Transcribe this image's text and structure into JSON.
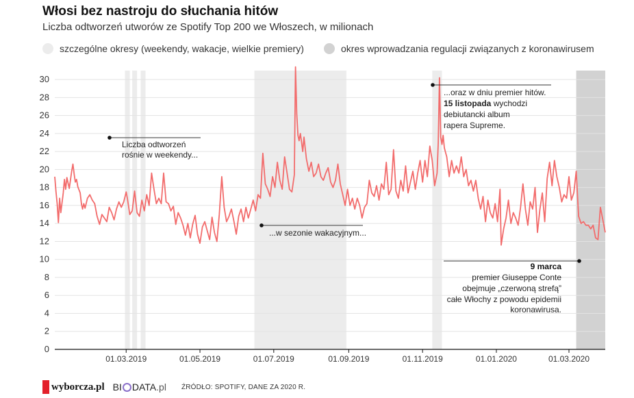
{
  "header": {
    "title": "Włosi bez nastroju do słuchania hitów",
    "subtitle": "Liczba  odtworzeń  utworów ze Spotify Top 200 we Włoszech, w milionach"
  },
  "legend": {
    "special_label": "szczególne okresy (weekendy, wakacje, wielkie premiery)",
    "special_color": "#ececec",
    "covid_label": "okres wprowadzania regulacji związanych z koronawirusem",
    "covid_color": "#d2d2d2"
  },
  "annotations": {
    "weekend_line1": "Liczba odtworzeń",
    "weekend_line2": "rośnie w weekendy...",
    "summer": "...w sezonie wakacyjnym...",
    "premiere_line1": "...oraz w dniu premier hitów.",
    "premiere_bold": "15 listopada",
    "premiere_line2_rest": " wychodzi",
    "premiere_line3": "debiutancki album",
    "premiere_line4": "rapera Supreme.",
    "covid_bold": "9 marca",
    "covid_line2": "premier Giuseppe Conte",
    "covid_line3": "obejmuje „czerwoną strefą”",
    "covid_line4": "całe Włochy z powodu epidemii",
    "covid_line5": "koronawirusa."
  },
  "footer": {
    "brand1": "wyborcza.pl",
    "brand2_a": "BI",
    "brand2_b": "DATA",
    "brand2_c": ".pl",
    "source": "ŹRÓDŁO: SPOTIFY, DANE ZA 2020 R."
  },
  "chart_data": {
    "type": "line",
    "title": "Włosi bez nastroju do słuchania hitów",
    "subtitle": "Liczba  odtworzeń  utworów ze Spotify Top 200 we Włoszech, w milionach",
    "x_start": "2019-01-01",
    "x_end": "2020-03-31",
    "xticks": [
      "2019-03-01",
      "2019-05-01",
      "2019-07-01",
      "2019-09-01",
      "2019-11-01",
      "2020-01-01",
      "2020-03-01"
    ],
    "xtick_labels": [
      "01.03.2019",
      "01.05.2019",
      "01.07.2019",
      "01.09.2019",
      "01.11.2019",
      "01.01.2020",
      "01.03.2020"
    ],
    "ylim": [
      0,
      31
    ],
    "yticks": [
      0,
      2,
      4,
      6,
      8,
      10,
      12,
      14,
      16,
      18,
      20,
      22,
      24,
      26,
      28,
      30
    ],
    "grid": true,
    "line_color": "#f26b6b",
    "shaded_regions": [
      {
        "start": "2019-02-28",
        "end": "2019-03-04",
        "kind": "special"
      },
      {
        "start": "2019-03-06",
        "end": "2019-03-10",
        "kind": "special"
      },
      {
        "start": "2019-03-13",
        "end": "2019-03-17",
        "kind": "special"
      },
      {
        "start": "2019-06-15",
        "end": "2019-08-30",
        "kind": "special"
      },
      {
        "start": "2019-11-09",
        "end": "2019-11-17",
        "kind": "special"
      },
      {
        "start": "2020-03-07",
        "end": "2020-03-31",
        "kind": "covid"
      }
    ],
    "series": [
      {
        "values": [
          [
            "2019-01-01",
            19.2
          ],
          [
            "2019-01-02",
            17.5
          ],
          [
            "2019-01-03",
            16.2
          ],
          [
            "2019-01-04",
            14.1
          ],
          [
            "2019-01-05",
            16.8
          ],
          [
            "2019-01-06",
            15.2
          ],
          [
            "2019-01-08",
            17.4
          ],
          [
            "2019-01-09",
            18.9
          ],
          [
            "2019-01-10",
            17.8
          ],
          [
            "2019-01-11",
            19.1
          ],
          [
            "2019-01-12",
            18.5
          ],
          [
            "2019-01-13",
            17.9
          ],
          [
            "2019-01-15",
            19.8
          ],
          [
            "2019-01-16",
            20.6
          ],
          [
            "2019-01-17",
            19.5
          ],
          [
            "2019-01-18",
            18.6
          ],
          [
            "2019-01-19",
            18.9
          ],
          [
            "2019-01-20",
            18.1
          ],
          [
            "2019-01-22",
            17.4
          ],
          [
            "2019-01-23",
            16.2
          ],
          [
            "2019-01-24",
            15.6
          ],
          [
            "2019-01-25",
            16.2
          ],
          [
            "2019-01-26",
            15.7
          ],
          [
            "2019-01-28",
            16.8
          ],
          [
            "2019-01-30",
            17.2
          ],
          [
            "2019-02-01",
            16.6
          ],
          [
            "2019-02-03",
            16.2
          ],
          [
            "2019-02-05",
            14.8
          ],
          [
            "2019-02-07",
            13.9
          ],
          [
            "2019-02-09",
            15.0
          ],
          [
            "2019-02-11",
            14.6
          ],
          [
            "2019-02-13",
            14.2
          ],
          [
            "2019-02-15",
            15.8
          ],
          [
            "2019-02-17",
            15.2
          ],
          [
            "2019-02-19",
            14.4
          ],
          [
            "2019-02-21",
            15.6
          ],
          [
            "2019-02-23",
            16.4
          ],
          [
            "2019-02-25",
            15.8
          ],
          [
            "2019-02-27",
            16.4
          ],
          [
            "2019-03-01",
            17.5
          ],
          [
            "2019-03-02",
            16.8
          ],
          [
            "2019-03-04",
            15.0
          ],
          [
            "2019-03-06",
            15.4
          ],
          [
            "2019-03-08",
            17.6
          ],
          [
            "2019-03-10",
            15.2
          ],
          [
            "2019-03-12",
            14.8
          ],
          [
            "2019-03-14",
            16.6
          ],
          [
            "2019-03-16",
            15.4
          ],
          [
            "2019-03-18",
            17.2
          ],
          [
            "2019-03-20",
            16.0
          ],
          [
            "2019-03-22",
            19.6
          ],
          [
            "2019-03-24",
            17.8
          ],
          [
            "2019-03-26",
            16.2
          ],
          [
            "2019-03-28",
            16.8
          ],
          [
            "2019-03-30",
            16.2
          ],
          [
            "2019-04-01",
            19.6
          ],
          [
            "2019-04-03",
            16.4
          ],
          [
            "2019-04-05",
            16.2
          ],
          [
            "2019-04-07",
            15.4
          ],
          [
            "2019-04-09",
            15.9
          ],
          [
            "2019-04-11",
            13.9
          ],
          [
            "2019-04-13",
            15.2
          ],
          [
            "2019-04-15",
            14.6
          ],
          [
            "2019-04-17",
            13.8
          ],
          [
            "2019-04-19",
            12.7
          ],
          [
            "2019-04-21",
            14.0
          ],
          [
            "2019-04-23",
            12.4
          ],
          [
            "2019-04-25",
            13.9
          ],
          [
            "2019-04-27",
            14.9
          ],
          [
            "2019-04-29",
            12.8
          ],
          [
            "2019-05-01",
            11.8
          ],
          [
            "2019-05-03",
            13.6
          ],
          [
            "2019-05-05",
            14.2
          ],
          [
            "2019-05-07",
            13.2
          ],
          [
            "2019-05-09",
            12.2
          ],
          [
            "2019-05-11",
            14.7
          ],
          [
            "2019-05-13",
            13.0
          ],
          [
            "2019-05-15",
            12.0
          ],
          [
            "2019-05-17",
            15.0
          ],
          [
            "2019-05-19",
            19.2
          ],
          [
            "2019-05-21",
            15.8
          ],
          [
            "2019-05-23",
            14.2
          ],
          [
            "2019-05-25",
            14.8
          ],
          [
            "2019-05-27",
            15.6
          ],
          [
            "2019-05-29",
            14.3
          ],
          [
            "2019-05-31",
            12.8
          ],
          [
            "2019-06-02",
            14.8
          ],
          [
            "2019-06-04",
            15.6
          ],
          [
            "2019-06-06",
            14.2
          ],
          [
            "2019-06-08",
            15.8
          ],
          [
            "2019-06-10",
            14.6
          ],
          [
            "2019-06-12",
            15.6
          ],
          [
            "2019-06-14",
            16.6
          ],
          [
            "2019-06-16",
            15.4
          ],
          [
            "2019-06-18",
            17.2
          ],
          [
            "2019-06-20",
            16.8
          ],
          [
            "2019-06-22",
            21.8
          ],
          [
            "2019-06-24",
            18.4
          ],
          [
            "2019-06-26",
            17.8
          ],
          [
            "2019-06-28",
            17.0
          ],
          [
            "2019-06-30",
            19.2
          ],
          [
            "2019-07-02",
            18.0
          ],
          [
            "2019-07-04",
            20.8
          ],
          [
            "2019-07-06",
            18.8
          ],
          [
            "2019-07-08",
            17.8
          ],
          [
            "2019-07-10",
            21.4
          ],
          [
            "2019-07-12",
            19.6
          ],
          [
            "2019-07-14",
            17.8
          ],
          [
            "2019-07-16",
            17.5
          ],
          [
            "2019-07-18",
            19.4
          ],
          [
            "2019-07-19",
            31.4
          ],
          [
            "2019-07-20",
            26.2
          ],
          [
            "2019-07-21",
            23.8
          ],
          [
            "2019-07-22",
            23.2
          ],
          [
            "2019-07-23",
            24.0
          ],
          [
            "2019-07-24",
            23.0
          ],
          [
            "2019-07-25",
            22.0
          ],
          [
            "2019-07-26",
            23.6
          ],
          [
            "2019-07-28",
            21.2
          ],
          [
            "2019-07-30",
            19.8
          ],
          [
            "2019-08-01",
            20.8
          ],
          [
            "2019-08-03",
            19.2
          ],
          [
            "2019-08-05",
            19.6
          ],
          [
            "2019-08-07",
            20.6
          ],
          [
            "2019-08-09",
            19.2
          ],
          [
            "2019-08-11",
            18.8
          ],
          [
            "2019-08-13",
            19.6
          ],
          [
            "2019-08-15",
            20.2
          ],
          [
            "2019-08-17",
            18.6
          ],
          [
            "2019-08-19",
            18.0
          ],
          [
            "2019-08-21",
            18.8
          ],
          [
            "2019-08-23",
            20.6
          ],
          [
            "2019-08-25",
            18.4
          ],
          [
            "2019-08-27",
            17.2
          ],
          [
            "2019-08-29",
            16.0
          ],
          [
            "2019-08-31",
            17.8
          ],
          [
            "2019-09-02",
            16.0
          ],
          [
            "2019-09-04",
            16.8
          ],
          [
            "2019-09-06",
            15.6
          ],
          [
            "2019-09-08",
            16.8
          ],
          [
            "2019-09-10",
            16.0
          ],
          [
            "2019-09-12",
            14.6
          ],
          [
            "2019-09-14",
            15.8
          ],
          [
            "2019-09-16",
            16.2
          ],
          [
            "2019-09-18",
            18.8
          ],
          [
            "2019-09-20",
            17.4
          ],
          [
            "2019-09-22",
            17.0
          ],
          [
            "2019-09-24",
            18.2
          ],
          [
            "2019-09-26",
            16.6
          ],
          [
            "2019-09-28",
            18.4
          ],
          [
            "2019-09-30",
            17.8
          ],
          [
            "2019-10-02",
            20.8
          ],
          [
            "2019-10-04",
            17.2
          ],
          [
            "2019-10-06",
            17.8
          ],
          [
            "2019-10-08",
            22.2
          ],
          [
            "2019-10-10",
            17.6
          ],
          [
            "2019-10-12",
            16.8
          ],
          [
            "2019-10-14",
            18.8
          ],
          [
            "2019-10-16",
            17.6
          ],
          [
            "2019-10-18",
            20.4
          ],
          [
            "2019-10-20",
            17.4
          ],
          [
            "2019-10-22",
            18.6
          ],
          [
            "2019-10-24",
            19.8
          ],
          [
            "2019-10-26",
            17.8
          ],
          [
            "2019-10-28",
            19.6
          ],
          [
            "2019-10-30",
            21.0
          ],
          [
            "2019-11-01",
            18.6
          ],
          [
            "2019-11-03",
            21.0
          ],
          [
            "2019-11-05",
            19.2
          ],
          [
            "2019-11-07",
            22.6
          ],
          [
            "2019-11-09",
            21.0
          ],
          [
            "2019-11-11",
            18.2
          ],
          [
            "2019-11-13",
            19.6
          ],
          [
            "2019-11-14",
            23.0
          ],
          [
            "2019-11-15",
            30.2
          ],
          [
            "2019-11-16",
            23.6
          ],
          [
            "2019-11-17",
            22.8
          ],
          [
            "2019-11-18",
            23.8
          ],
          [
            "2019-11-19",
            22.4
          ],
          [
            "2019-11-21",
            21.4
          ],
          [
            "2019-11-23",
            19.2
          ],
          [
            "2019-11-25",
            21.0
          ],
          [
            "2019-11-27",
            19.6
          ],
          [
            "2019-11-29",
            20.4
          ],
          [
            "2019-12-01",
            19.6
          ],
          [
            "2019-12-03",
            21.4
          ],
          [
            "2019-12-05",
            19.2
          ],
          [
            "2019-12-07",
            20.0
          ],
          [
            "2019-12-09",
            18.2
          ],
          [
            "2019-12-11",
            18.8
          ],
          [
            "2019-12-13",
            17.6
          ],
          [
            "2019-12-15",
            18.8
          ],
          [
            "2019-12-17",
            16.8
          ],
          [
            "2019-12-19",
            15.6
          ],
          [
            "2019-12-21",
            17.0
          ],
          [
            "2019-12-23",
            14.2
          ],
          [
            "2019-12-25",
            16.6
          ],
          [
            "2019-12-27",
            15.2
          ],
          [
            "2019-12-29",
            14.6
          ],
          [
            "2019-12-31",
            16.2
          ],
          [
            "2020-01-02",
            14.2
          ],
          [
            "2020-01-04",
            17.8
          ],
          [
            "2020-01-05",
            11.6
          ],
          [
            "2020-01-07",
            13.4
          ],
          [
            "2020-01-09",
            14.6
          ],
          [
            "2020-01-11",
            16.6
          ],
          [
            "2020-01-13",
            14.0
          ],
          [
            "2020-01-15",
            15.2
          ],
          [
            "2020-01-17",
            14.6
          ],
          [
            "2020-01-19",
            13.8
          ],
          [
            "2020-01-21",
            15.8
          ],
          [
            "2020-01-23",
            18.4
          ],
          [
            "2020-01-25",
            15.6
          ],
          [
            "2020-01-27",
            13.8
          ],
          [
            "2020-01-29",
            16.4
          ],
          [
            "2020-01-31",
            15.6
          ],
          [
            "2020-02-02",
            18.0
          ],
          [
            "2020-02-04",
            13.0
          ],
          [
            "2020-02-06",
            15.6
          ],
          [
            "2020-02-08",
            17.4
          ],
          [
            "2020-02-10",
            14.2
          ],
          [
            "2020-02-12",
            19.0
          ],
          [
            "2020-02-14",
            20.8
          ],
          [
            "2020-02-16",
            18.2
          ],
          [
            "2020-02-18",
            21.0
          ],
          [
            "2020-02-20",
            19.2
          ],
          [
            "2020-02-22",
            18.0
          ],
          [
            "2020-02-24",
            16.4
          ],
          [
            "2020-02-26",
            17.2
          ],
          [
            "2020-02-28",
            16.8
          ],
          [
            "2020-03-01",
            19.2
          ],
          [
            "2020-03-03",
            16.6
          ],
          [
            "2020-03-05",
            17.4
          ],
          [
            "2020-03-07",
            19.8
          ],
          [
            "2020-03-09",
            14.8
          ],
          [
            "2020-03-11",
            14.0
          ],
          [
            "2020-03-13",
            14.2
          ],
          [
            "2020-03-15",
            13.8
          ],
          [
            "2020-03-17",
            13.8
          ],
          [
            "2020-03-19",
            13.4
          ],
          [
            "2020-03-21",
            13.8
          ],
          [
            "2020-03-23",
            12.4
          ],
          [
            "2020-03-25",
            12.2
          ],
          [
            "2020-03-27",
            15.8
          ],
          [
            "2020-03-29",
            14.4
          ],
          [
            "2020-03-31",
            13.0
          ]
        ]
      }
    ]
  }
}
